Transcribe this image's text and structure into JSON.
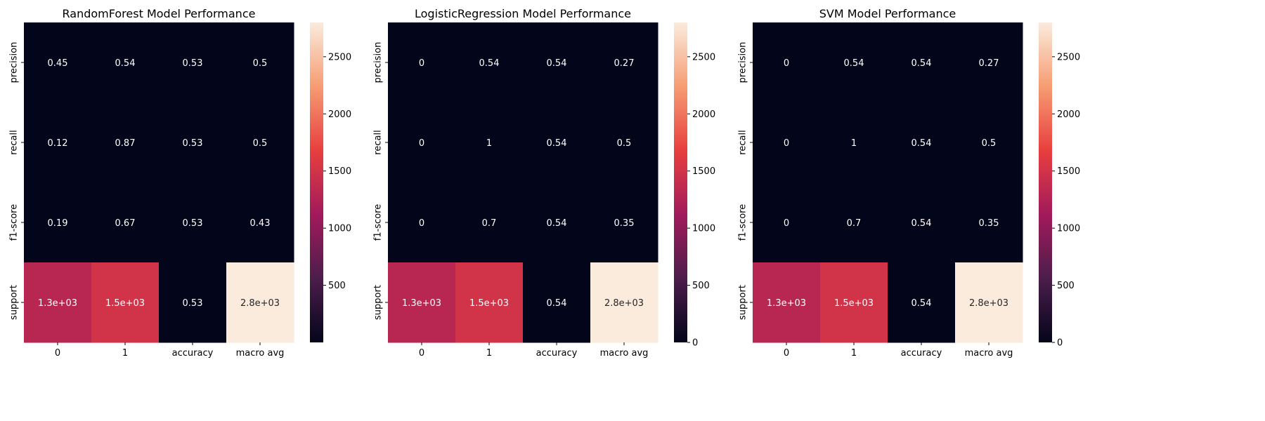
{
  "chart_data": [
    {
      "type": "heatmap",
      "title": "RandomForest Model Performance",
      "rows": [
        "precision",
        "recall",
        "f1-score",
        "support"
      ],
      "columns": [
        "0",
        "1",
        "accuracy",
        "macro avg"
      ],
      "values": [
        [
          0.45,
          0.54,
          0.53,
          0.5
        ],
        [
          0.12,
          0.87,
          0.53,
          0.5
        ],
        [
          0.19,
          0.67,
          0.53,
          0.43
        ],
        [
          1300,
          1500,
          0.53,
          2800
        ]
      ],
      "labels": [
        [
          "0.45",
          "0.54",
          "0.53",
          "0.5"
        ],
        [
          "0.12",
          "0.87",
          "0.53",
          "0.5"
        ],
        [
          "0.19",
          "0.67",
          "0.53",
          "0.43"
        ],
        [
          "1.3e+03",
          "1.5e+03",
          "0.53",
          "2.8e+03"
        ]
      ],
      "colorbar_ticks": [
        "500",
        "1000",
        "1500",
        "2000",
        "2500"
      ],
      "colorbar_tick_values": [
        500,
        1000,
        1500,
        2000,
        2500
      ],
      "vmin": 0.12,
      "vmax": 2800
    },
    {
      "type": "heatmap",
      "title": "LogisticRegression Model Performance",
      "rows": [
        "precision",
        "recall",
        "f1-score",
        "support"
      ],
      "columns": [
        "0",
        "1",
        "accuracy",
        "macro avg"
      ],
      "values": [
        [
          0,
          0.54,
          0.54,
          0.27
        ],
        [
          0,
          1,
          0.54,
          0.5
        ],
        [
          0,
          0.7,
          0.54,
          0.35
        ],
        [
          1300,
          1500,
          0.54,
          2800
        ]
      ],
      "labels": [
        [
          "0",
          "0.54",
          "0.54",
          "0.27"
        ],
        [
          "0",
          "1",
          "0.54",
          "0.5"
        ],
        [
          "0",
          "0.7",
          "0.54",
          "0.35"
        ],
        [
          "1.3e+03",
          "1.5e+03",
          "0.54",
          "2.8e+03"
        ]
      ],
      "colorbar_ticks": [
        "0",
        "500",
        "1000",
        "1500",
        "2000",
        "2500"
      ],
      "colorbar_tick_values": [
        0,
        500,
        1000,
        1500,
        2000,
        2500
      ],
      "vmin": 0,
      "vmax": 2800
    },
    {
      "type": "heatmap",
      "title": "SVM Model Performance",
      "rows": [
        "precision",
        "recall",
        "f1-score",
        "support"
      ],
      "columns": [
        "0",
        "1",
        "accuracy",
        "macro avg"
      ],
      "values": [
        [
          0,
          0.54,
          0.54,
          0.27
        ],
        [
          0,
          1,
          0.54,
          0.5
        ],
        [
          0,
          0.7,
          0.54,
          0.35
        ],
        [
          1300,
          1500,
          0.54,
          2800
        ]
      ],
      "labels": [
        [
          "0",
          "0.54",
          "0.54",
          "0.27"
        ],
        [
          "0",
          "1",
          "0.54",
          "0.5"
        ],
        [
          "0",
          "0.7",
          "0.54",
          "0.35"
        ],
        [
          "1.3e+03",
          "1.5e+03",
          "0.54",
          "2.8e+03"
        ]
      ],
      "colorbar_ticks": [
        "0",
        "500",
        "1000",
        "1500",
        "2000",
        "2500"
      ],
      "colorbar_tick_values": [
        0,
        500,
        1000,
        1500,
        2000,
        2500
      ],
      "vmin": 0,
      "vmax": 2800
    }
  ],
  "colormap": [
    "#03051a",
    "#4c1d4b",
    "#a11a5b",
    "#e83f3f",
    "#f69c73",
    "#faebdd"
  ]
}
